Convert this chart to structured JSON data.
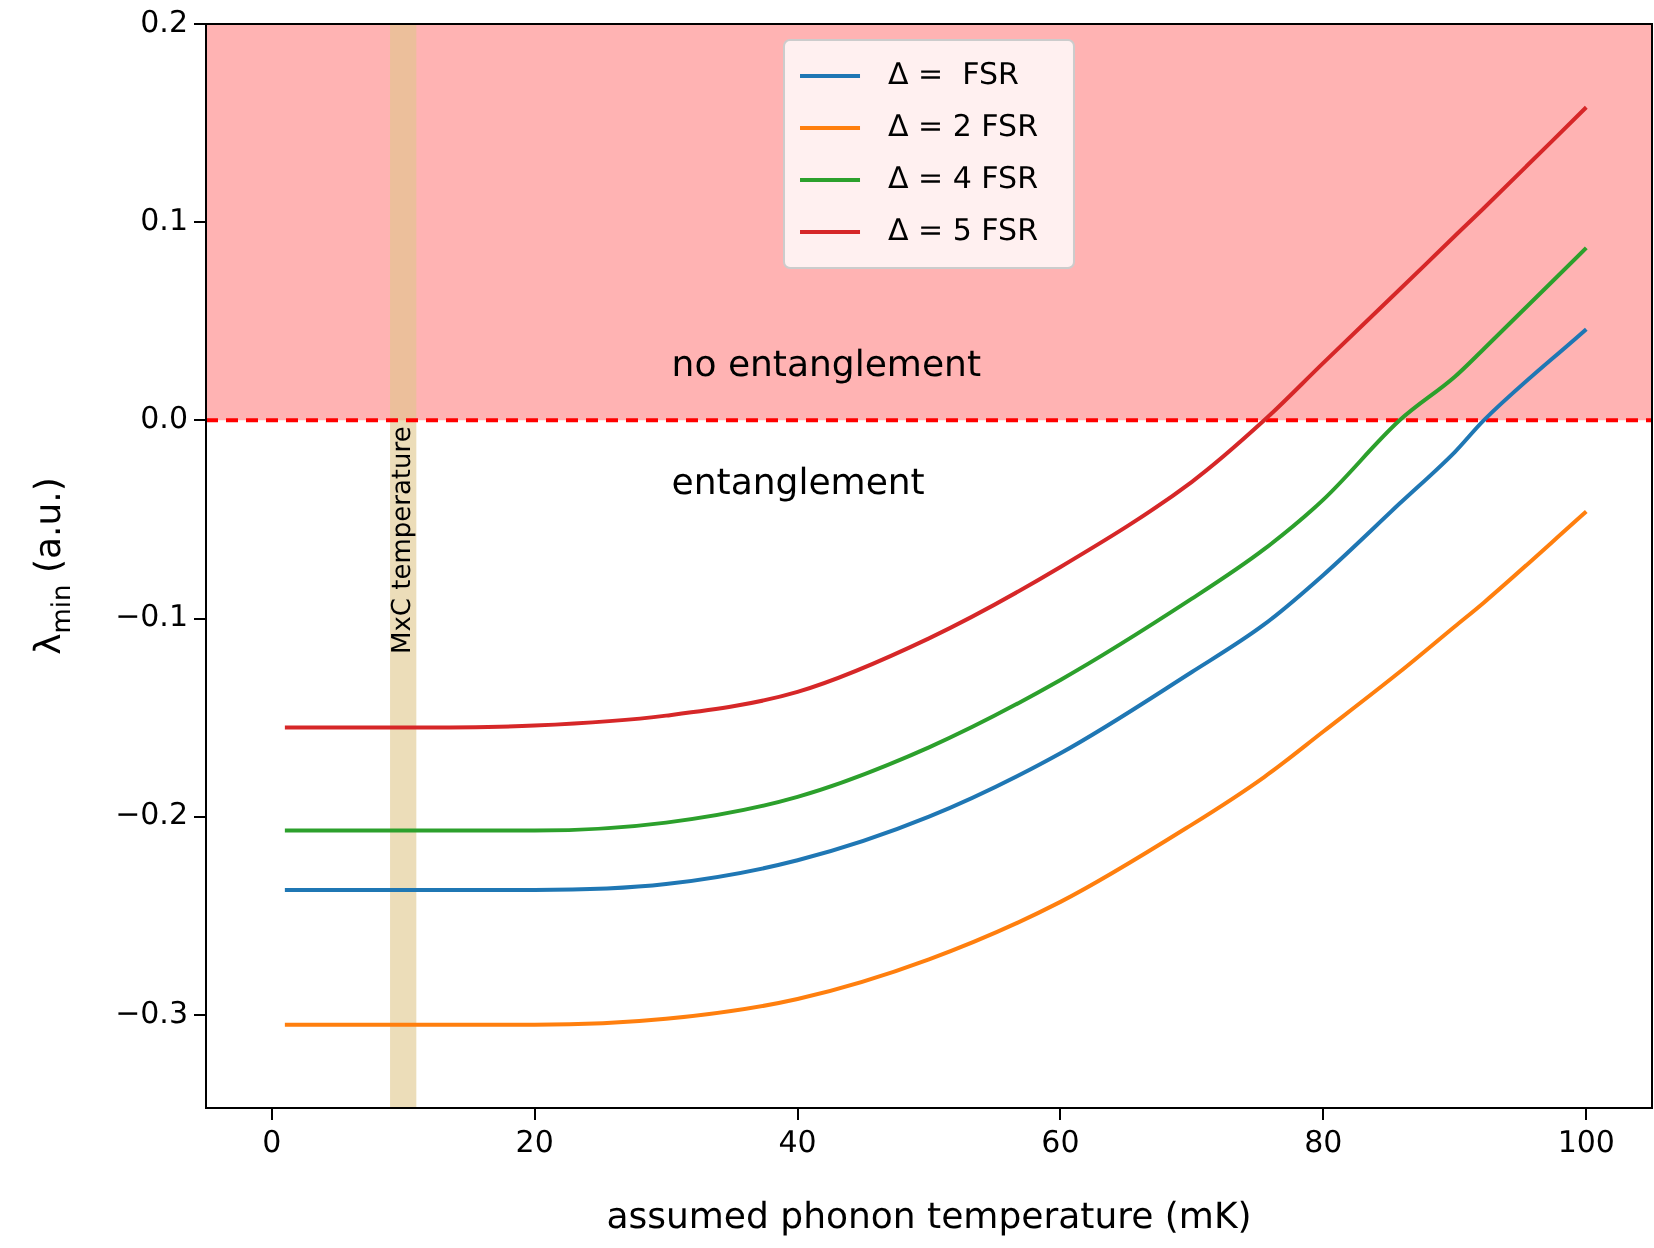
{
  "chart_data": {
    "type": "line",
    "xlabel": "assumed phonon temperature (mK)",
    "ylabel": "λ$_{min}$ (a.u.)",
    "x": [
      1,
      10,
      20,
      30,
      40,
      50,
      60,
      70,
      75.5,
      80,
      85.8,
      90,
      92.2,
      100
    ],
    "series": [
      {
        "name": "Δ =  FSR",
        "color": "#1f77b4",
        "values": [
          -0.237,
          -0.237,
          -0.237,
          -0.234,
          -0.222,
          -0.2,
          -0.168,
          -0.127,
          -0.103,
          -0.078,
          -0.042,
          -0.016,
          0,
          0.046
        ]
      },
      {
        "name": "Δ = 2 FSR",
        "color": "#ff7f0e",
        "values": [
          -0.305,
          -0.305,
          -0.305,
          -0.302,
          -0.292,
          -0.272,
          -0.243,
          -0.204,
          -0.18,
          -0.157,
          -0.127,
          -0.104,
          -0.092,
          -0.046
        ]
      },
      {
        "name": "Δ = 4 FSR",
        "color": "#2ca02c",
        "values": [
          -0.207,
          -0.207,
          -0.207,
          -0.203,
          -0.19,
          -0.165,
          -0.131,
          -0.09,
          -0.065,
          -0.04,
          0,
          0.022,
          0.036,
          0.087
        ]
      },
      {
        "name": "Δ = 5 FSR",
        "color": "#d62728",
        "values": [
          -0.155,
          -0.155,
          -0.154,
          -0.149,
          -0.137,
          -0.11,
          -0.074,
          -0.031,
          0,
          0.029,
          0.066,
          0.093,
          0.107,
          0.158
        ]
      }
    ],
    "xlim": [
      -5,
      105
    ],
    "ylim": [
      -0.347,
      0.2
    ],
    "xticks": [
      0,
      20,
      40,
      60,
      80,
      100
    ],
    "yticks": [
      {
        "value": -0.3,
        "label": "−0.3"
      },
      {
        "value": -0.2,
        "label": "−0.2"
      },
      {
        "value": -0.1,
        "label": "−0.1"
      },
      {
        "value": 0,
        "label": "0.0"
      },
      {
        "value": 0.1,
        "label": "0.1"
      },
      {
        "value": 0.2,
        "label": "0.2"
      }
    ],
    "bands": [
      {
        "axis": "y",
        "from": 0,
        "to": 0.2,
        "color": "#ffb3b3"
      },
      {
        "axis": "x",
        "from": 9,
        "to": 11,
        "label": "MxC temperature",
        "color": "#e0c68a"
      }
    ],
    "ref_lines": [
      {
        "axis": "y",
        "value": 0,
        "color": "#ff0000",
        "line_style": "dashed"
      }
    ],
    "annotations": [
      "no entanglement",
      "entanglement"
    ],
    "legend": "top",
    "grid": false,
    "marker": "none",
    "line_style": "solid"
  }
}
